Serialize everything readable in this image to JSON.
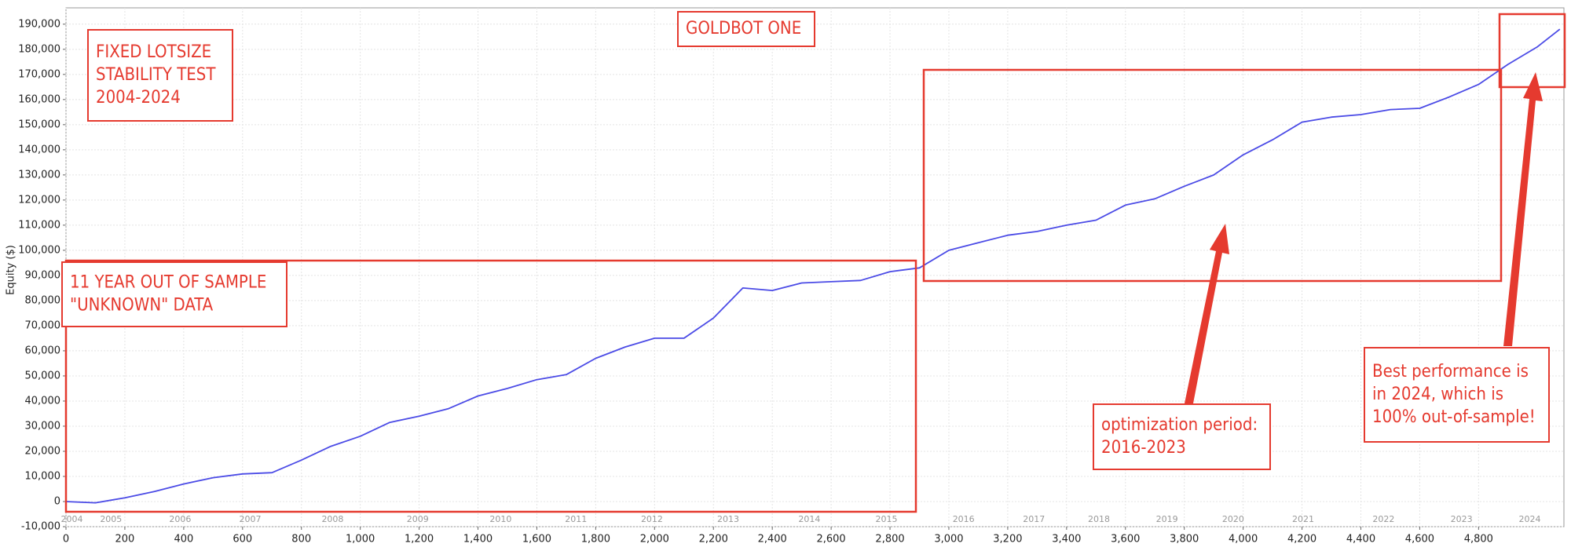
{
  "chart_data": {
    "type": "line",
    "ylabel": "Equity ($)",
    "x": [
      0,
      100,
      200,
      300,
      400,
      500,
      600,
      700,
      800,
      900,
      1000,
      1100,
      1200,
      1300,
      1400,
      1500,
      1600,
      1700,
      1800,
      1900,
      2000,
      2100,
      2200,
      2300,
      2400,
      2500,
      2600,
      2700,
      2800,
      2900,
      3000,
      3100,
      3200,
      3300,
      3400,
      3500,
      3600,
      3700,
      3800,
      3900,
      4000,
      4100,
      4200,
      4300,
      4400,
      4500,
      4600,
      4700,
      4800,
      4900,
      5000,
      5076
    ],
    "series": [
      {
        "color": "#4b4be6",
        "values": [
          0,
          -500,
          1500,
          4000,
          7000,
          9500,
          11000,
          11500,
          16500,
          22000,
          26000,
          31500,
          34000,
          37000,
          42000,
          45000,
          48500,
          50500,
          57000,
          61500,
          65000,
          65000,
          73000,
          85000,
          84000,
          87000,
          87500,
          88000,
          91500,
          93000,
          100000,
          103000,
          106000,
          107500,
          110000,
          112000,
          118000,
          120500,
          125500,
          130000,
          138000,
          144000,
          151000,
          153000,
          154000,
          156000,
          156500,
          161000,
          166000,
          174000,
          181000,
          188000
        ]
      }
    ],
    "xlim": [
      0,
      5090
    ],
    "ylim": [
      -10000,
      196500
    ],
    "xticks": [
      0,
      200,
      400,
      600,
      800,
      {
        "value": 1000,
        "label": "1,000"
      },
      {
        "value": 1200,
        "label": "1,200"
      },
      {
        "value": 1400,
        "label": "1,400"
      },
      {
        "value": 1600,
        "label": "1,600"
      },
      {
        "value": 1800,
        "label": "1,800"
      },
      {
        "value": 2000,
        "label": "2,000"
      },
      {
        "value": 2200,
        "label": "2,200"
      },
      {
        "value": 2400,
        "label": "2,400"
      },
      {
        "value": 2600,
        "label": "2,600"
      },
      {
        "value": 2800,
        "label": "2,800"
      },
      {
        "value": 3000,
        "label": "3,000"
      },
      {
        "value": 3200,
        "label": "3,200"
      },
      {
        "value": 3400,
        "label": "3,400"
      },
      {
        "value": 3600,
        "label": "3,600"
      },
      {
        "value": 3800,
        "label": "3,800"
      },
      {
        "value": 4000,
        "label": "4,000"
      },
      {
        "value": 4200,
        "label": "4,200"
      },
      {
        "value": 4400,
        "label": "4,400"
      },
      {
        "value": 4600,
        "label": "4,600"
      },
      {
        "value": 4800,
        "label": "4,800"
      }
    ],
    "yticks": [
      {
        "value": -10000,
        "label": "-10,000"
      },
      0,
      {
        "value": 10000,
        "label": "10,000"
      },
      {
        "value": 20000,
        "label": "20,000"
      },
      {
        "value": 30000,
        "label": "30,000"
      },
      {
        "value": 40000,
        "label": "40,000"
      },
      {
        "value": 50000,
        "label": "50,000"
      },
      {
        "value": 60000,
        "label": "60,000"
      },
      {
        "value": 70000,
        "label": "70,000"
      },
      {
        "value": 80000,
        "label": "80,000"
      },
      {
        "value": 90000,
        "label": "90,000"
      },
      {
        "value": 100000,
        "label": "100,000"
      },
      {
        "value": 110000,
        "label": "110,000"
      },
      {
        "value": 120000,
        "label": "120,000"
      },
      {
        "value": 130000,
        "label": "130,000"
      },
      {
        "value": 140000,
        "label": "140,000"
      },
      {
        "value": 150000,
        "label": "150,000"
      },
      {
        "value": 160000,
        "label": "160,000"
      },
      {
        "value": 170000,
        "label": "170,000"
      },
      {
        "value": 180000,
        "label": "180,000"
      },
      {
        "value": 190000,
        "label": "190,000"
      }
    ],
    "grid": true,
    "year_labels": [
      {
        "value": 20,
        "label": "2004"
      },
      {
        "value": 153,
        "label": "2005"
      },
      {
        "value": 388,
        "label": "2006"
      },
      {
        "value": 626,
        "label": "2007"
      },
      {
        "value": 906,
        "label": "2008"
      },
      {
        "value": 1195,
        "label": "2009"
      },
      {
        "value": 1477,
        "label": "2010"
      },
      {
        "value": 1733,
        "label": "2011"
      },
      {
        "value": 1991,
        "label": "2012"
      },
      {
        "value": 2250,
        "label": "2013"
      },
      {
        "value": 2526,
        "label": "2014"
      },
      {
        "value": 2788,
        "label": "2015"
      },
      {
        "value": 3050,
        "label": "2016"
      },
      {
        "value": 3289,
        "label": "2017"
      },
      {
        "value": 3510,
        "label": "2018"
      },
      {
        "value": 3741,
        "label": "2019"
      },
      {
        "value": 3966,
        "label": "2020"
      },
      {
        "value": 4204,
        "label": "2021"
      },
      {
        "value": 4477,
        "label": "2022"
      },
      {
        "value": 4742,
        "label": "2023"
      },
      {
        "value": 4974,
        "label": "2024"
      }
    ],
    "annotations": [
      {
        "lines": [
          "GOLDBOT ONE"
        ]
      },
      {
        "lines": [
          "FIXED LOTSIZE",
          "STABILITY TEST",
          "2004-2024"
        ]
      },
      {
        "lines": [
          "11 YEAR OUT OF SAMPLE",
          "\"UNKNOWN\" DATA"
        ]
      },
      {
        "lines": [
          "optimization period:",
          "2016-2023"
        ]
      },
      {
        "lines": [
          "Best performance is",
          "in 2024, which is",
          "100% out-of-sample!"
        ]
      }
    ]
  }
}
